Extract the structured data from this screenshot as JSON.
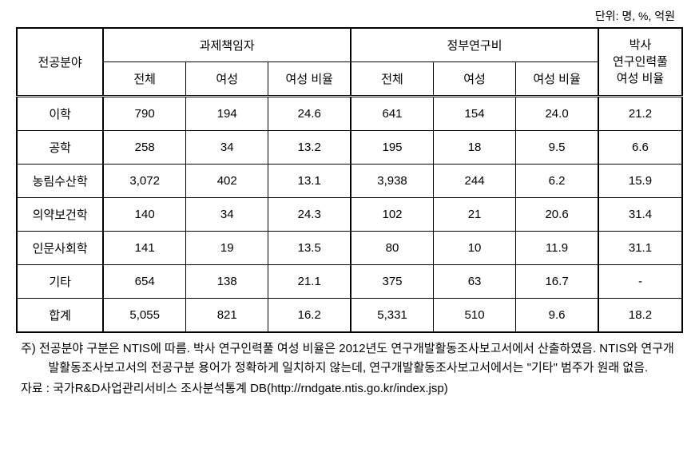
{
  "unit_label": "단위: 명, %, 억원",
  "header": {
    "major_field": "전공분야",
    "group1": "과제책임자",
    "group2": "정부연구비",
    "group3_line1": "박사",
    "group3_line2": "연구인력풀",
    "group3_line3": "여성 비율",
    "sub_total": "전체",
    "sub_female": "여성",
    "sub_ratio": "여성 비율"
  },
  "rows": [
    {
      "label": "이학",
      "c1": "790",
      "c2": "194",
      "c3": "24.6",
      "c4": "641",
      "c5": "154",
      "c6": "24.0",
      "c7": "21.2"
    },
    {
      "label": "공학",
      "c1": "258",
      "c2": "34",
      "c3": "13.2",
      "c4": "195",
      "c5": "18",
      "c6": "9.5",
      "c7": "6.6"
    },
    {
      "label": "농림수산학",
      "c1": "3,072",
      "c2": "402",
      "c3": "13.1",
      "c4": "3,938",
      "c5": "244",
      "c6": "6.2",
      "c7": "15.9"
    },
    {
      "label": "의약보건학",
      "c1": "140",
      "c2": "34",
      "c3": "24.3",
      "c4": "102",
      "c5": "21",
      "c6": "20.6",
      "c7": "31.4"
    },
    {
      "label": "인문사회학",
      "c1": "141",
      "c2": "19",
      "c3": "13.5",
      "c4": "80",
      "c5": "10",
      "c6": "11.9",
      "c7": "31.1"
    },
    {
      "label": "기타",
      "c1": "654",
      "c2": "138",
      "c3": "21.1",
      "c4": "375",
      "c5": "63",
      "c6": "16.7",
      "c7": "-"
    },
    {
      "label": "합계",
      "c1": "5,055",
      "c2": "821",
      "c3": "16.2",
      "c4": "5,331",
      "c5": "510",
      "c6": "9.6",
      "c7": "18.2"
    }
  ],
  "note": "주) 전공분야 구분은 NTIS에 따름. 박사 연구인력풀 여성 비율은 2012년도 연구개발활동조사보고서에서 산출하였음. NTIS와 연구개발활동조사보고서의 전공구분 용어가 정확하게 일치하지 않는데, 연구개발활동조사보고서에서는 \"기타\" 범주가 원래 없음.",
  "source": "자료 : 국가R&D사업관리서비스 조사분석통계 DB(http://rndgate.ntis.go.kr/index.jsp)",
  "styles": {
    "font_family": "Malgun Gothic",
    "font_size_body": 15,
    "font_size_unit": 14,
    "border_color": "#000000",
    "background_color": "#ffffff",
    "outer_border_width": 2,
    "inner_border_width": 1,
    "double_border_below_header": true,
    "cell_padding_vertical": 10,
    "cell_padding_horizontal": 4,
    "text_align": "center"
  }
}
